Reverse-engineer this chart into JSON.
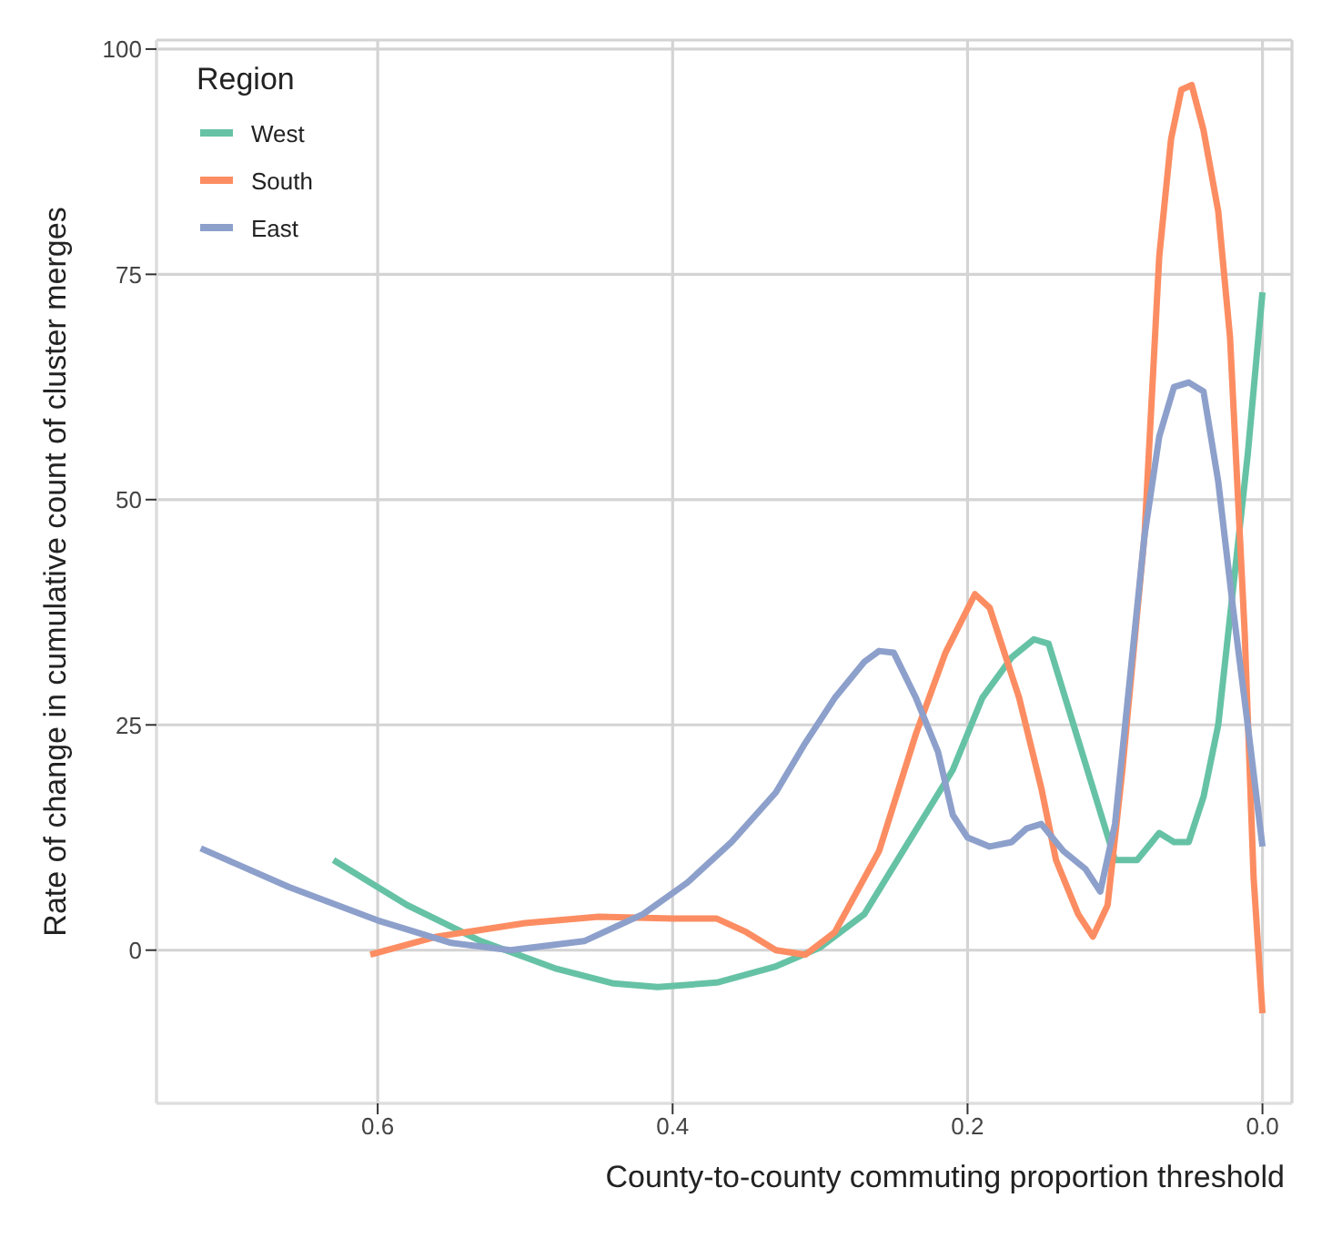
{
  "chart_data": {
    "type": "line",
    "xlabel": "County-to-county commuting proportion threshold",
    "ylabel": "Rate of change in cumulative count of cluster merges",
    "legend_title": "Region",
    "legend": "top left",
    "grid": true,
    "marker": "none",
    "line_style": "solid",
    "xlim": [
      0.75,
      -0.02
    ],
    "xticks": [
      0.6,
      0.4,
      0.2,
      {
        "value": 0,
        "label": "0.0"
      }
    ],
    "ylim": [
      -17,
      101
    ],
    "yticks": [
      0,
      25,
      50,
      75,
      100
    ],
    "series": [
      {
        "name": "West",
        "color": "#66c2a5",
        "x": [
          0.63,
          0.58,
          0.53,
          0.48,
          0.44,
          0.41,
          0.37,
          0.33,
          0.3,
          0.27,
          0.24,
          0.21,
          0.19,
          0.17,
          0.155,
          0.145,
          0.13,
          0.115,
          0.1,
          0.085,
          0.07,
          0.06,
          0.05,
          0.04,
          0.03,
          0.02,
          0.01,
          0
        ],
        "values": [
          10,
          5,
          1,
          -2,
          -3.7,
          -4.1,
          -3.6,
          -1.8,
          0.3,
          4,
          12,
          20,
          28,
          32.5,
          34.5,
          34,
          26,
          18,
          10,
          10,
          13,
          12,
          12,
          17,
          25,
          40,
          55,
          73
        ]
      },
      {
        "name": "South",
        "color": "#fc8d62",
        "x": [
          0.605,
          0.56,
          0.5,
          0.45,
          0.4,
          0.37,
          0.35,
          0.33,
          0.31,
          0.29,
          0.26,
          0.235,
          0.215,
          0.195,
          0.185,
          0.165,
          0.15,
          0.14,
          0.125,
          0.115,
          0.105,
          0.095,
          0.08,
          0.07,
          0.062,
          0.055,
          0.048,
          0.04,
          0.03,
          0.022,
          0.012,
          0.006,
          0
        ],
        "values": [
          -0.5,
          1.5,
          3,
          3.7,
          3.5,
          3.5,
          2,
          0,
          -0.5,
          2,
          11,
          24,
          33,
          39.5,
          38,
          28,
          18,
          10,
          4,
          1.5,
          5,
          20,
          46,
          77,
          90,
          95.5,
          96,
          91,
          82,
          68,
          35,
          8,
          -7
        ]
      },
      {
        "name": "East",
        "color": "#8da0cb",
        "x": [
          0.72,
          0.66,
          0.6,
          0.55,
          0.51,
          0.46,
          0.42,
          0.39,
          0.36,
          0.33,
          0.31,
          0.29,
          0.27,
          0.26,
          0.25,
          0.235,
          0.22,
          0.21,
          0.2,
          0.185,
          0.17,
          0.16,
          0.15,
          0.135,
          0.12,
          0.11,
          0.1,
          0.09,
          0.08,
          0.07,
          0.06,
          0.05,
          0.04,
          0.03,
          0.02,
          0.01,
          0
        ],
        "values": [
          11.3,
          7,
          3.3,
          0.8,
          0,
          1,
          4,
          7.5,
          12,
          17.5,
          23,
          28,
          32,
          33.2,
          33,
          28,
          22,
          15,
          12.5,
          11.5,
          12,
          13.5,
          14,
          11,
          9,
          6.5,
          14,
          30,
          46,
          57,
          62.5,
          63,
          62,
          52,
          38,
          25,
          11.5
        ]
      }
    ]
  }
}
